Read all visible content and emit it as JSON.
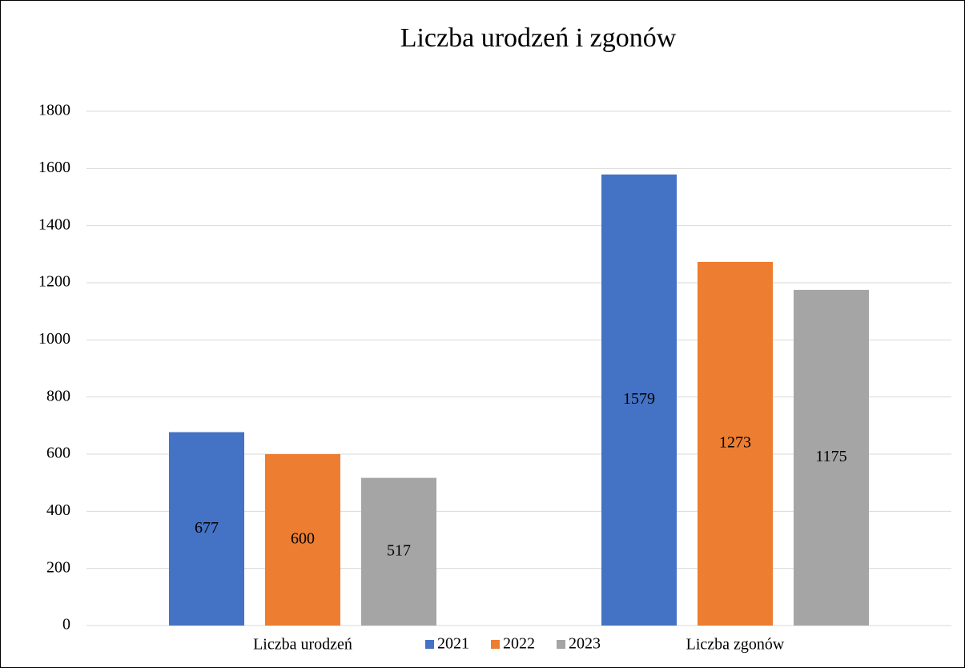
{
  "chart_data": {
    "type": "bar",
    "title": "Liczba urodzeń i zgonów",
    "categories": [
      "Liczba urodzeń",
      "Liczba zgonów"
    ],
    "series": [
      {
        "name": "2021",
        "color": "#4472c4",
        "values": [
          677,
          1579
        ]
      },
      {
        "name": "2022",
        "color": "#ed7d31",
        "values": [
          600,
          1273
        ]
      },
      {
        "name": "2023",
        "color": "#a5a5a5",
        "values": [
          517,
          1175
        ]
      }
    ],
    "ylim": [
      0,
      1800
    ],
    "yticks": [
      0,
      200,
      400,
      600,
      800,
      1000,
      1200,
      1400,
      1600,
      1800
    ],
    "grid": true,
    "legend": "bottom"
  }
}
